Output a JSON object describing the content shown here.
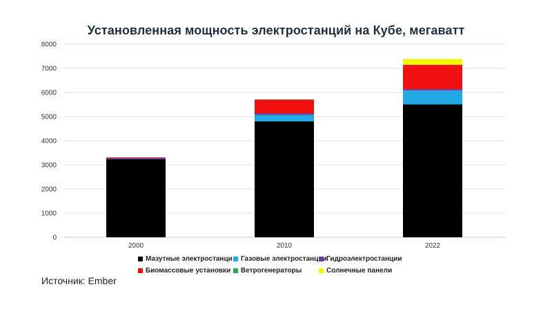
{
  "title": "Установленная мощность электростанций  на Кубе, мегаватт",
  "source": "Источник: Ember",
  "chart_data": {
    "type": "bar",
    "stacked": true,
    "title": "Установленная мощность электростанций  на Кубе, мегаватт",
    "categories": [
      "2000",
      "2010",
      "2022"
    ],
    "ylim": [
      0,
      8000
    ],
    "yticks": [
      0,
      1000,
      2000,
      3000,
      4000,
      5000,
      6000,
      7000,
      8000
    ],
    "grid": true,
    "legend_position": "bottom",
    "series": [
      {
        "name": "Мазутные электростанци",
        "color": "#000000",
        "values": [
          3230,
          4800,
          5500
        ]
      },
      {
        "name": "Газовые электростанции",
        "color": "#21a9e6",
        "values": [
          0,
          270,
          580
        ]
      },
      {
        "name": "Гидроэлектростанции",
        "color": "#6a3a9a",
        "values": [
          60,
          60,
          60
        ]
      },
      {
        "name": "Биомассовые установки",
        "color": "#f01010",
        "values": [
          20,
          570,
          1000
        ]
      },
      {
        "name": "Ветрогенераторы",
        "color": "#2aaa55",
        "values": [
          0,
          10,
          12
        ]
      },
      {
        "name": "Солнечные панели",
        "color": "#f5f500",
        "values": [
          0,
          0,
          230
        ]
      }
    ]
  }
}
